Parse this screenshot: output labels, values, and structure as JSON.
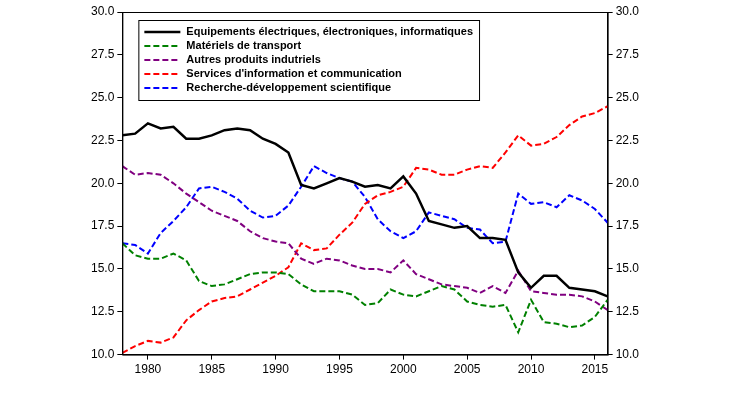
{
  "chart_data": {
    "type": "line",
    "x": [
      1978,
      1979,
      1980,
      1981,
      1982,
      1983,
      1984,
      1985,
      1986,
      1987,
      1988,
      1989,
      1990,
      1991,
      1992,
      1993,
      1994,
      1995,
      1996,
      1997,
      1998,
      1999,
      2000,
      2001,
      2002,
      2003,
      2004,
      2005,
      2006,
      2007,
      2008,
      2009,
      2010,
      2011,
      2012,
      2013,
      2014,
      2015,
      2016
    ],
    "series": [
      {
        "name": "Equipements électriques, électroniques, informatiques",
        "color": "#000000",
        "line_style": "solid",
        "values": [
          22.8,
          22.9,
          23.5,
          23.2,
          23.3,
          22.6,
          22.6,
          22.8,
          23.1,
          23.2,
          23.1,
          22.6,
          22.3,
          21.8,
          19.9,
          19.7,
          20.0,
          20.3,
          20.1,
          19.8,
          19.9,
          19.7,
          20.4,
          19.4,
          17.8,
          17.6,
          17.4,
          17.5,
          16.8,
          16.8,
          16.7,
          14.8,
          13.9,
          14.6,
          14.6,
          13.9,
          13.8,
          13.7,
          13.4
        ]
      },
      {
        "name": "Matériels de transport",
        "color": "#008000",
        "line_style": "dashed",
        "values": [
          16.5,
          15.8,
          15.6,
          15.6,
          15.9,
          15.5,
          14.3,
          14.0,
          14.1,
          14.4,
          14.7,
          14.8,
          14.8,
          14.7,
          14.1,
          13.7,
          13.7,
          13.7,
          13.5,
          12.9,
          13.0,
          13.8,
          13.5,
          13.4,
          13.7,
          14.0,
          13.8,
          13.1,
          12.9,
          12.8,
          12.9,
          11.3,
          13.2,
          11.9,
          11.8,
          11.6,
          11.7,
          12.2,
          13.2
        ]
      },
      {
        "name": "Autres produits indutriels",
        "color": "#800080",
        "line_style": "dashed",
        "values": [
          21.0,
          20.5,
          20.6,
          20.5,
          20.0,
          19.4,
          18.9,
          18.4,
          18.1,
          17.8,
          17.2,
          16.8,
          16.6,
          16.5,
          15.6,
          15.3,
          15.6,
          15.5,
          15.2,
          15.0,
          15.0,
          14.8,
          15.5,
          14.7,
          14.4,
          14.1,
          14.0,
          13.9,
          13.6,
          14.0,
          13.6,
          14.9,
          13.7,
          13.6,
          13.5,
          13.5,
          13.4,
          13.1,
          12.6
        ]
      },
      {
        "name": "Services d'information et communication",
        "color": "#ff0000",
        "line_style": "dashed",
        "values": [
          10.1,
          10.5,
          10.8,
          10.7,
          11.0,
          12.0,
          12.6,
          13.1,
          13.3,
          13.4,
          13.8,
          14.2,
          14.6,
          15.1,
          16.5,
          16.1,
          16.2,
          17.0,
          17.7,
          18.8,
          19.3,
          19.5,
          19.8,
          20.9,
          20.8,
          20.5,
          20.5,
          20.8,
          21.0,
          20.9,
          21.8,
          22.8,
          22.2,
          22.3,
          22.7,
          23.4,
          23.9,
          24.1,
          24.5
        ]
      },
      {
        "name": "Recherche-développement scientifique",
        "color": "#0000ff",
        "line_style": "dashed",
        "values": [
          16.5,
          16.4,
          15.9,
          17.1,
          17.8,
          18.6,
          19.7,
          19.8,
          19.5,
          19.1,
          18.4,
          18.0,
          18.1,
          18.7,
          19.8,
          21.0,
          20.6,
          20.3,
          20.1,
          19.2,
          17.9,
          17.2,
          16.8,
          17.2,
          18.3,
          18.1,
          17.9,
          17.4,
          17.3,
          16.5,
          16.6,
          19.4,
          18.8,
          18.9,
          18.6,
          19.3,
          19.0,
          18.5,
          17.7
        ]
      }
    ],
    "xlim": [
      1978,
      2016
    ],
    "xticks": [
      1980,
      1985,
      1990,
      1995,
      2000,
      2005,
      2010,
      2015
    ],
    "ylim": [
      10,
      30
    ],
    "yticks": [
      {
        "value": 10,
        "label": "10.0"
      },
      {
        "value": 12.5,
        "label": "12.5"
      },
      {
        "value": 15,
        "label": "15.0"
      },
      {
        "value": 17.5,
        "label": "17.5"
      },
      {
        "value": 20,
        "label": "20.0"
      },
      {
        "value": 22.5,
        "label": "22.5"
      },
      {
        "value": 25,
        "label": "25.0"
      },
      {
        "value": 27.5,
        "label": "27.5"
      },
      {
        "value": 30,
        "label": "30.0"
      }
    ],
    "y2lim": [
      10,
      30
    ],
    "y2ticks": [
      {
        "value": 10,
        "label": "10.0"
      },
      {
        "value": 12.5,
        "label": "12.5"
      },
      {
        "value": 15,
        "label": "15.0"
      },
      {
        "value": 17.5,
        "label": "17.5"
      },
      {
        "value": 20,
        "label": "20.0"
      },
      {
        "value": 22.5,
        "label": "22.5"
      },
      {
        "value": 25,
        "label": "25.0"
      },
      {
        "value": 27.5,
        "label": "27.5"
      },
      {
        "value": 30,
        "label": "30.0"
      }
    ],
    "grid": false,
    "legend": "upper left"
  }
}
